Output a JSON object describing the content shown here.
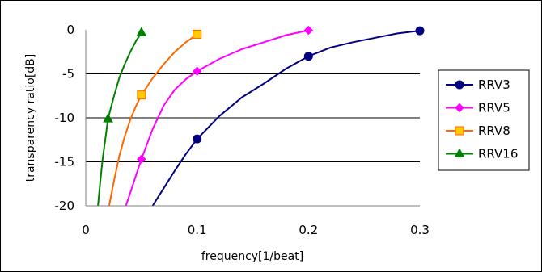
{
  "chart_data": {
    "type": "line",
    "title": "",
    "xlabel": "frequency[1/beat]",
    "ylabel": "transparency ratio[dB]",
    "xlim": [
      0,
      0.3
    ],
    "ylim": [
      -20,
      0
    ],
    "xticks": [
      0,
      0.1,
      0.2,
      0.3
    ],
    "yticks": [
      0,
      -5,
      -10,
      -15,
      -20
    ],
    "xtick_labels": [
      "0",
      "0.1",
      "0.2",
      "0.3"
    ],
    "ytick_labels": [
      "0",
      "-5",
      "-10",
      "-15",
      "-20"
    ],
    "grid": "horizontal",
    "legend_position": "right",
    "series": [
      {
        "name": "RRV3",
        "color": "#000080",
        "marker": "circle",
        "points": [
          [
            0.1,
            -12.4
          ],
          [
            0.2,
            -3.0
          ],
          [
            0.3,
            -0.1
          ]
        ],
        "curve": [
          [
            0.06,
            -20
          ],
          [
            0.07,
            -18
          ],
          [
            0.08,
            -16
          ],
          [
            0.09,
            -14.1
          ],
          [
            0.1,
            -12.4
          ],
          [
            0.12,
            -9.8
          ],
          [
            0.14,
            -7.7
          ],
          [
            0.16,
            -6.1
          ],
          [
            0.18,
            -4.4
          ],
          [
            0.2,
            -3.0
          ],
          [
            0.22,
            -2.0
          ],
          [
            0.24,
            -1.4
          ],
          [
            0.26,
            -0.9
          ],
          [
            0.28,
            -0.4
          ],
          [
            0.3,
            -0.1
          ]
        ]
      },
      {
        "name": "RRV5",
        "color": "#ff00ff",
        "marker": "diamond",
        "points": [
          [
            0.05,
            -14.7
          ],
          [
            0.1,
            -4.7
          ],
          [
            0.2,
            -0.05
          ]
        ],
        "curve": [
          [
            0.036,
            -20
          ],
          [
            0.04,
            -18.5
          ],
          [
            0.045,
            -16.6
          ],
          [
            0.05,
            -14.7
          ],
          [
            0.06,
            -11.3
          ],
          [
            0.07,
            -8.6
          ],
          [
            0.08,
            -6.8
          ],
          [
            0.09,
            -5.6
          ],
          [
            0.1,
            -4.7
          ],
          [
            0.12,
            -3.3
          ],
          [
            0.14,
            -2.2
          ],
          [
            0.16,
            -1.4
          ],
          [
            0.18,
            -0.6
          ],
          [
            0.2,
            -0.05
          ]
        ]
      },
      {
        "name": "RRV8",
        "color": "#ff6600",
        "marker": "square",
        "marker_fill": "#ffcc00",
        "points": [
          [
            0.05,
            -7.4
          ],
          [
            0.1,
            -0.5
          ]
        ],
        "curve": [
          [
            0.021,
            -20
          ],
          [
            0.025,
            -17.4
          ],
          [
            0.03,
            -14.4
          ],
          [
            0.035,
            -12.1
          ],
          [
            0.04,
            -10.2
          ],
          [
            0.045,
            -8.7
          ],
          [
            0.05,
            -7.4
          ],
          [
            0.06,
            -5.5
          ],
          [
            0.07,
            -3.9
          ],
          [
            0.08,
            -2.5
          ],
          [
            0.09,
            -1.4
          ],
          [
            0.1,
            -0.5
          ]
        ]
      },
      {
        "name": "RRV16",
        "color": "#008000",
        "marker": "triangle",
        "points": [
          [
            0.02,
            -10.1
          ],
          [
            0.05,
            -0.3
          ]
        ],
        "curve": [
          [
            0.011,
            -20
          ],
          [
            0.013,
            -17.3
          ],
          [
            0.015,
            -14.8
          ],
          [
            0.018,
            -12.0
          ],
          [
            0.02,
            -10.1
          ],
          [
            0.025,
            -7.7
          ],
          [
            0.03,
            -5.5
          ],
          [
            0.035,
            -3.9
          ],
          [
            0.04,
            -2.5
          ],
          [
            0.045,
            -1.3
          ],
          [
            0.05,
            -0.3
          ]
        ]
      }
    ]
  }
}
